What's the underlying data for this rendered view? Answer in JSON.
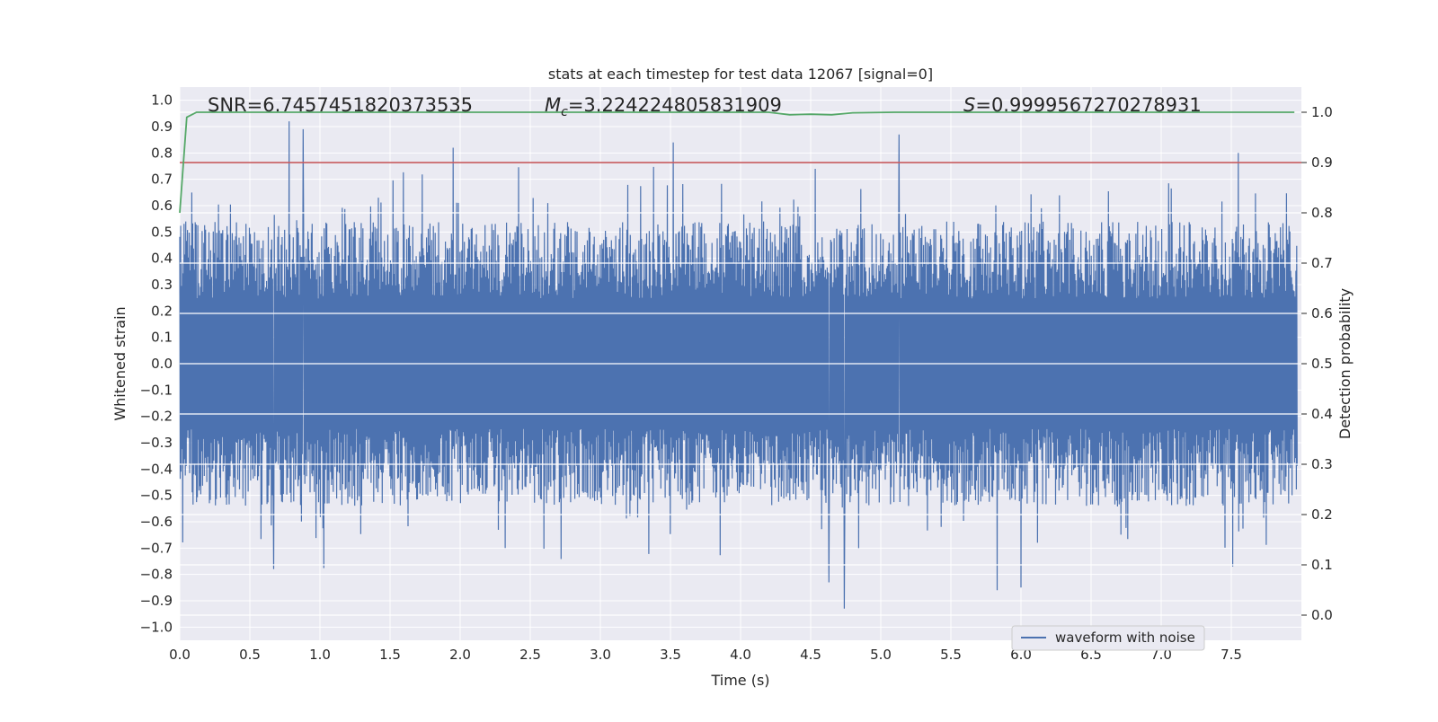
{
  "chart_data": {
    "type": "line",
    "title": "stats at each timestep for test data 12067 [signal=0]",
    "xlabel": "Time (s)",
    "ylabel": "Whitened strain",
    "ylabel_right": "Detection probability",
    "xlim": [
      0.0,
      8.0
    ],
    "ylim": [
      -1.05,
      1.05
    ],
    "ylim_right": [
      -0.05,
      1.05
    ],
    "x_ticks": [
      "0.0",
      "0.5",
      "1.0",
      "1.5",
      "2.0",
      "2.5",
      "3.0",
      "3.5",
      "4.0",
      "4.5",
      "5.0",
      "5.5",
      "6.0",
      "6.5",
      "7.0",
      "7.5"
    ],
    "y_ticks_left": [
      "1.0",
      "0.9",
      "0.8",
      "0.7",
      "0.6",
      "0.5",
      "0.4",
      "0.3",
      "0.2",
      "0.1",
      "0.0",
      "−0.1",
      "−0.2",
      "−0.3",
      "−0.4",
      "−0.5",
      "−0.6",
      "−0.7",
      "−0.8",
      "−0.9",
      "−1.0"
    ],
    "y_ticks_right": [
      "1.0",
      "0.9",
      "0.8",
      "0.7",
      "0.6",
      "0.5",
      "0.4",
      "0.3",
      "0.2",
      "0.1",
      "0.0"
    ],
    "annotations": {
      "snr": "SNR=6.7457451820373535",
      "mc_symbol": "M",
      "mc_sub": "c",
      "mc_value": "=3.224224805831909",
      "s_symbol": "S",
      "s_value": "=0.9999567270278931"
    },
    "threshold": {
      "value": 0.9,
      "color": "#c44e52"
    },
    "series": [
      {
        "name": "waveform with noise",
        "color": "#4c72b0",
        "axis": "left",
        "envelope_typical": 0.45,
        "max": 0.92,
        "min": -0.93,
        "peaks": [
          {
            "x": 0.78,
            "y": 0.92
          },
          {
            "x": 0.88,
            "y": 0.89
          },
          {
            "x": 1.95,
            "y": 0.82
          },
          {
            "x": 3.52,
            "y": 0.84
          },
          {
            "x": 5.13,
            "y": 0.87
          },
          {
            "x": 7.55,
            "y": 0.8
          },
          {
            "x": 0.67,
            "y": -0.78
          },
          {
            "x": 4.74,
            "y": -0.93
          },
          {
            "x": 6.0,
            "y": -0.85
          },
          {
            "x": 5.83,
            "y": -0.86
          },
          {
            "x": 4.63,
            "y": -0.83
          },
          {
            "x": 7.51,
            "y": -0.77
          }
        ]
      },
      {
        "name": "",
        "color": "#55a868",
        "axis": "right",
        "points": [
          [
            0.0,
            0.8
          ],
          [
            0.05,
            0.99
          ],
          [
            0.12,
            1.0
          ],
          [
            4.2,
            1.0
          ],
          [
            4.35,
            0.995
          ],
          [
            4.5,
            0.996
          ],
          [
            4.65,
            0.995
          ],
          [
            4.8,
            0.999
          ],
          [
            5.1,
            1.0
          ],
          [
            7.95,
            1.0
          ]
        ]
      }
    ],
    "legend": {
      "placement": "lower-right",
      "entries": [
        "waveform with noise"
      ]
    },
    "grid": true,
    "background": "#eaeaf2"
  }
}
